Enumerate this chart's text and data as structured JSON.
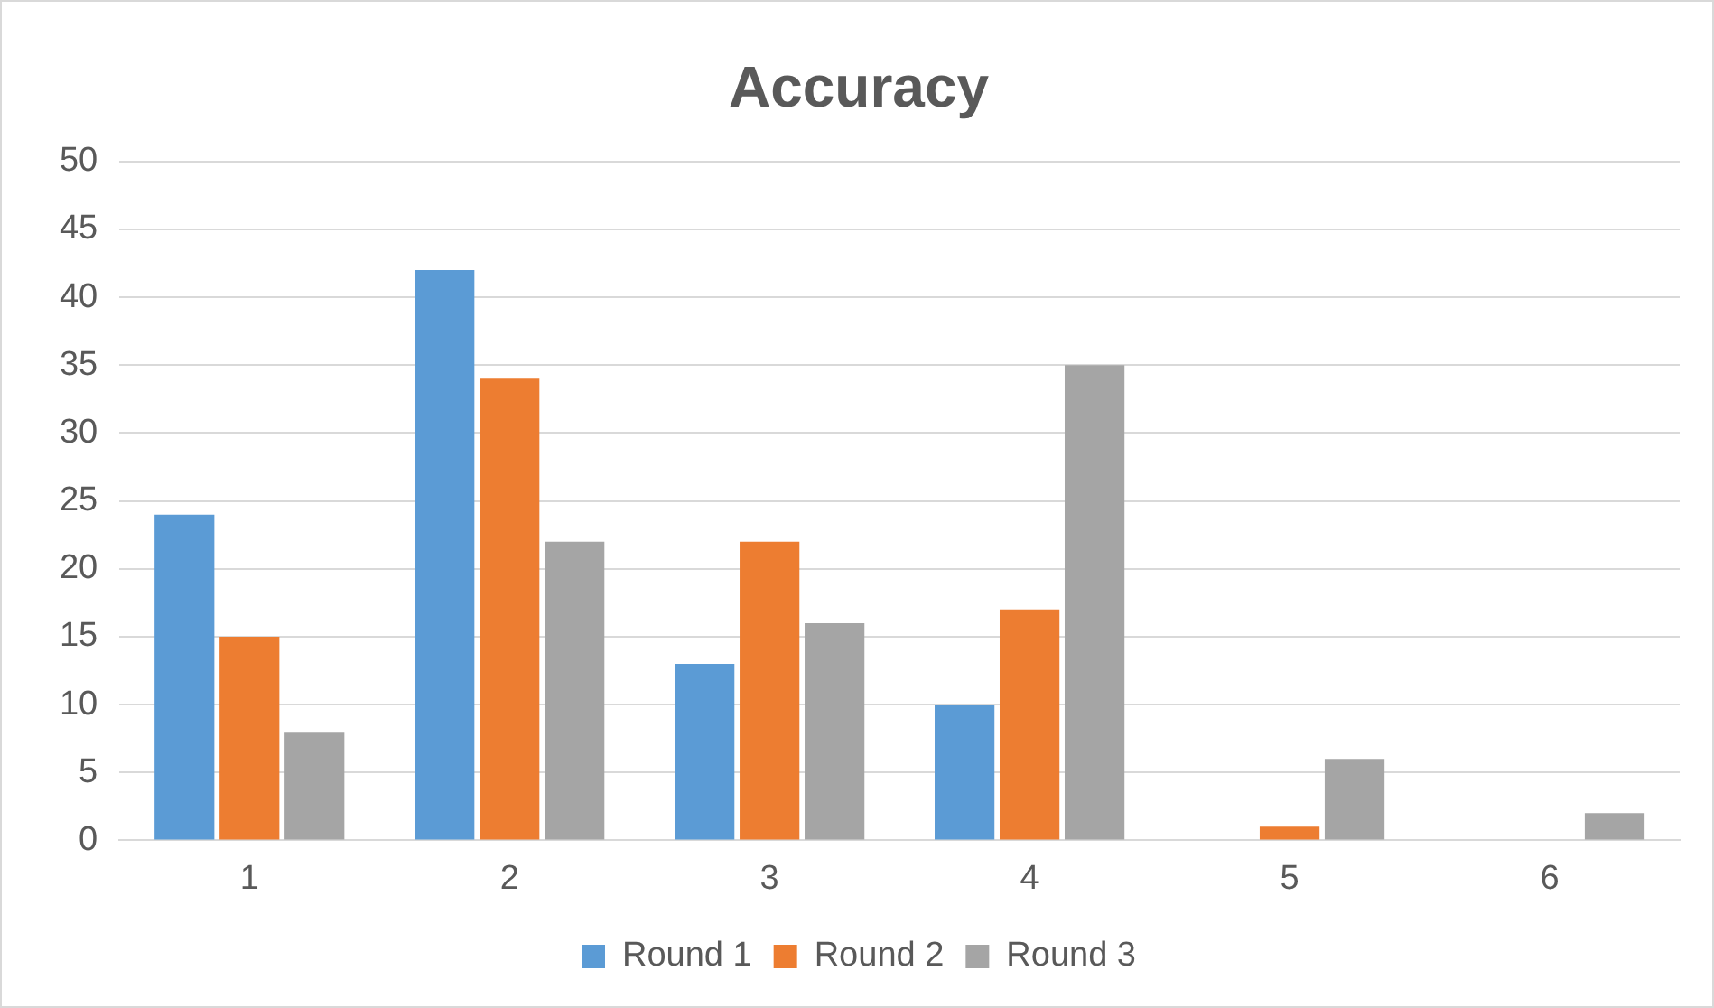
{
  "chart_data": {
    "type": "bar",
    "title": "Accuracy",
    "categories": [
      "1",
      "2",
      "3",
      "4",
      "5",
      "6"
    ],
    "series": [
      {
        "name": "Round 1",
        "color": "#5b9bd5",
        "values": [
          24,
          42,
          13,
          10,
          0,
          0
        ]
      },
      {
        "name": "Round 2",
        "color": "#ed7d31",
        "values": [
          15,
          34,
          22,
          17,
          1,
          0
        ]
      },
      {
        "name": "Round 3",
        "color": "#a5a5a5",
        "values": [
          8,
          22,
          16,
          35,
          6,
          2
        ]
      }
    ],
    "ylim": [
      0,
      50
    ],
    "yticks": [
      0,
      5,
      10,
      15,
      20,
      25,
      30,
      35,
      40,
      45,
      50
    ],
    "grid": "y",
    "legend": "bottom"
  }
}
